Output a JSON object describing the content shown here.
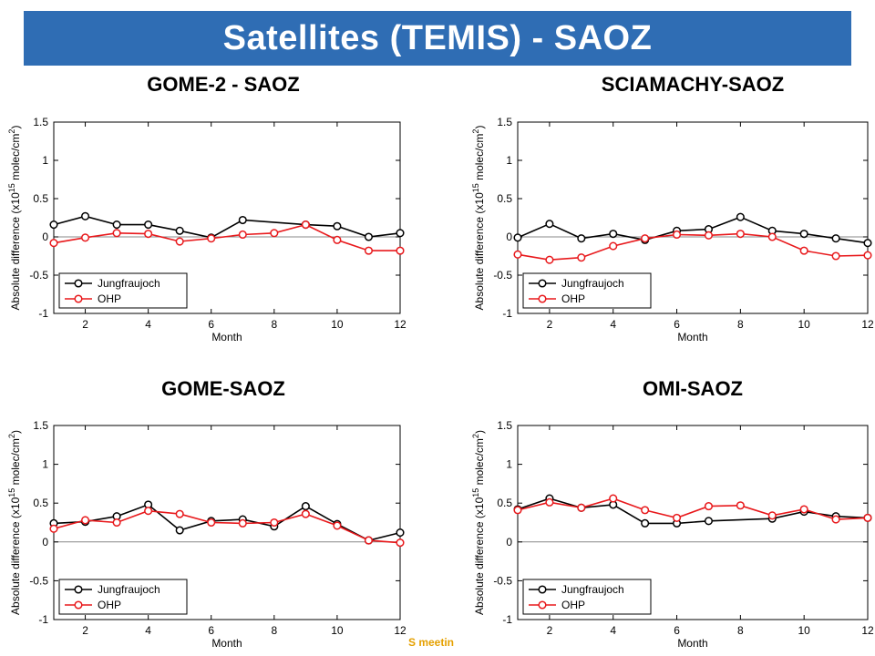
{
  "header": {
    "title": "Satellites (TEMIS) - SAOZ"
  },
  "footer": {
    "text": "S meetin"
  },
  "colors": {
    "banner": "#2f6db4",
    "jungfraujoch": "#000000",
    "ohp": "#e8191c",
    "zero_line": "#888888",
    "footer": "#e5a000"
  },
  "chart_data": [
    {
      "type": "line",
      "title": "GOME-2 - SAOZ",
      "xlabel": "Month",
      "ylabel": "Absolute difference (x10^15 molec/cm^2)",
      "xlim": [
        1,
        12
      ],
      "ylim": [
        -1,
        1.5
      ],
      "xticks": [
        "2",
        "4",
        "6",
        "8",
        "10",
        "12"
      ],
      "yticks": [
        "-1",
        "-0.5",
        "0",
        "0.5",
        "1",
        "1.5"
      ],
      "legend_position": "lower-left",
      "series": [
        {
          "name": "Jungfraujoch",
          "color": "#000000",
          "points": [
            [
              1,
              0.16
            ],
            [
              2,
              0.27
            ],
            [
              3,
              0.16
            ],
            [
              4,
              0.16
            ],
            [
              5,
              0.08
            ],
            [
              6,
              -0.01
            ],
            [
              7,
              0.22
            ],
            [
              9,
              0.16
            ],
            [
              10,
              0.14
            ],
            [
              11,
              0.0
            ],
            [
              12,
              0.05
            ]
          ]
        },
        {
          "name": "OHP",
          "color": "#e8191c",
          "points": [
            [
              1,
              -0.08
            ],
            [
              2,
              -0.01
            ],
            [
              3,
              0.05
            ],
            [
              4,
              0.04
            ],
            [
              5,
              -0.06
            ],
            [
              6,
              -0.02
            ],
            [
              7,
              0.03
            ],
            [
              8,
              0.05
            ],
            [
              9,
              0.16
            ],
            [
              10,
              -0.04
            ],
            [
              11,
              -0.18
            ],
            [
              12,
              -0.18
            ]
          ]
        }
      ]
    },
    {
      "type": "line",
      "title": "SCIAMACHY-SAOZ",
      "xlabel": "Month",
      "ylabel": "Absolute difference (x10^15 molec/cm^2)",
      "xlim": [
        1,
        12
      ],
      "ylim": [
        -1,
        1.5
      ],
      "xticks": [
        "2",
        "4",
        "6",
        "8",
        "10",
        "12"
      ],
      "yticks": [
        "-1",
        "-0.5",
        "0",
        "0.5",
        "1",
        "1.5"
      ],
      "legend_position": "lower-left",
      "series": [
        {
          "name": "Jungfraujoch",
          "color": "#000000",
          "points": [
            [
              1,
              -0.01
            ],
            [
              2,
              0.17
            ],
            [
              3,
              -0.02
            ],
            [
              4,
              0.04
            ],
            [
              5,
              -0.04
            ],
            [
              6,
              0.08
            ],
            [
              7,
              0.1
            ],
            [
              8,
              0.26
            ],
            [
              9,
              0.08
            ],
            [
              10,
              0.04
            ],
            [
              11,
              -0.02
            ],
            [
              12,
              -0.08
            ]
          ]
        },
        {
          "name": "OHP",
          "color": "#e8191c",
          "points": [
            [
              1,
              -0.23
            ],
            [
              2,
              -0.3
            ],
            [
              3,
              -0.27
            ],
            [
              4,
              -0.12
            ],
            [
              5,
              -0.02
            ],
            [
              6,
              0.03
            ],
            [
              7,
              0.02
            ],
            [
              8,
              0.04
            ],
            [
              9,
              0.0
            ],
            [
              10,
              -0.18
            ],
            [
              11,
              -0.25
            ],
            [
              12,
              -0.24
            ]
          ]
        }
      ]
    },
    {
      "type": "line",
      "title": "GOME-SAOZ",
      "xlabel": "Month",
      "ylabel": "Absolute difference (x10^15 molec/cm^2)",
      "xlim": [
        1,
        12
      ],
      "ylim": [
        -1,
        1.5
      ],
      "xticks": [
        "2",
        "4",
        "6",
        "8",
        "10",
        "12"
      ],
      "yticks": [
        "-1",
        "-0.5",
        "0",
        "0.5",
        "1",
        "1.5"
      ],
      "legend_position": "lower-left",
      "series": [
        {
          "name": "Jungfraujoch",
          "color": "#000000",
          "points": [
            [
              1,
              0.24
            ],
            [
              2,
              0.26
            ],
            [
              3,
              0.33
            ],
            [
              4,
              0.48
            ],
            [
              5,
              0.15
            ],
            [
              6,
              0.27
            ],
            [
              7,
              0.29
            ],
            [
              8,
              0.2
            ],
            [
              9,
              0.46
            ],
            [
              10,
              0.23
            ],
            [
              11,
              0.02
            ],
            [
              12,
              0.12
            ]
          ]
        },
        {
          "name": "OHP",
          "color": "#e8191c",
          "points": [
            [
              1,
              0.17
            ],
            [
              2,
              0.28
            ],
            [
              3,
              0.25
            ],
            [
              4,
              0.4
            ],
            [
              5,
              0.36
            ],
            [
              6,
              0.25
            ],
            [
              7,
              0.24
            ],
            [
              8,
              0.25
            ],
            [
              9,
              0.36
            ],
            [
              10,
              0.21
            ],
            [
              11,
              0.02
            ],
            [
              12,
              -0.01
            ]
          ]
        }
      ]
    },
    {
      "type": "line",
      "title": "OMI-SAOZ",
      "xlabel": "Month",
      "ylabel": "Absolute difference (x10^15 molec/cm^2)",
      "xlim": [
        1,
        12
      ],
      "ylim": [
        -1,
        1.5
      ],
      "xticks": [
        "2",
        "4",
        "6",
        "8",
        "10",
        "12"
      ],
      "yticks": [
        "-1",
        "-0.5",
        "0",
        "0.5",
        "1",
        "1.5"
      ],
      "legend_position": "lower-left",
      "series": [
        {
          "name": "Jungfraujoch",
          "color": "#000000",
          "points": [
            [
              1,
              0.42
            ],
            [
              2,
              0.56
            ],
            [
              3,
              0.44
            ],
            [
              4,
              0.48
            ],
            [
              5,
              0.24
            ],
            [
              6,
              0.24
            ],
            [
              7,
              0.27
            ],
            [
              9,
              0.3
            ],
            [
              10,
              0.39
            ],
            [
              11,
              0.33
            ],
            [
              12,
              0.31
            ]
          ]
        },
        {
          "name": "OHP",
          "color": "#e8191c",
          "points": [
            [
              1,
              0.41
            ],
            [
              2,
              0.51
            ],
            [
              3,
              0.44
            ],
            [
              4,
              0.56
            ],
            [
              5,
              0.41
            ],
            [
              6,
              0.31
            ],
            [
              7,
              0.46
            ],
            [
              8,
              0.47
            ],
            [
              9,
              0.34
            ],
            [
              10,
              0.42
            ],
            [
              11,
              0.29
            ],
            [
              12,
              0.31
            ]
          ]
        }
      ]
    }
  ]
}
